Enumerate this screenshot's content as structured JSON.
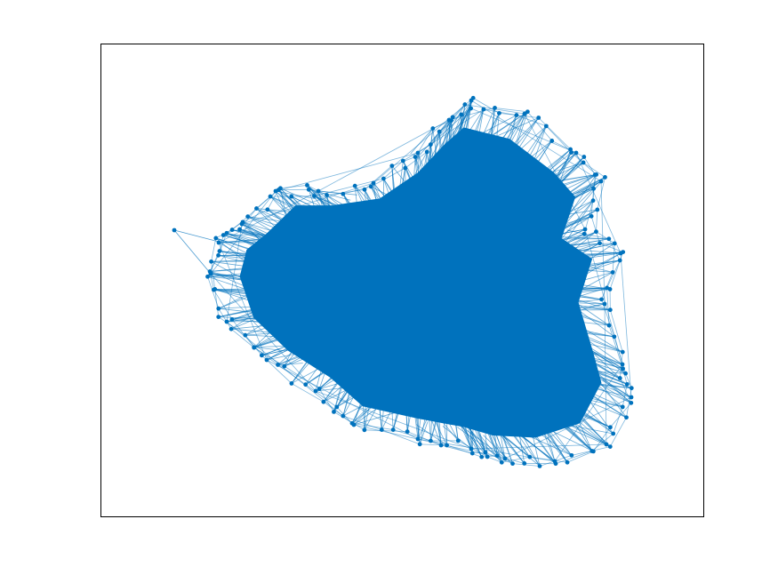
{
  "figure": {
    "type": "network-graph",
    "axes_frame": true,
    "ticks_visible": false,
    "title": "",
    "xlabel": "",
    "ylabel": ""
  },
  "colors": {
    "node": "#0072bd",
    "edge": "#0072bd",
    "frame": "#000000",
    "background": "#ffffff"
  },
  "graph": {
    "layout_style": "force-directed dense cluster",
    "outlier_nodes": 1,
    "peripheral_nodes_visible": true
  }
}
